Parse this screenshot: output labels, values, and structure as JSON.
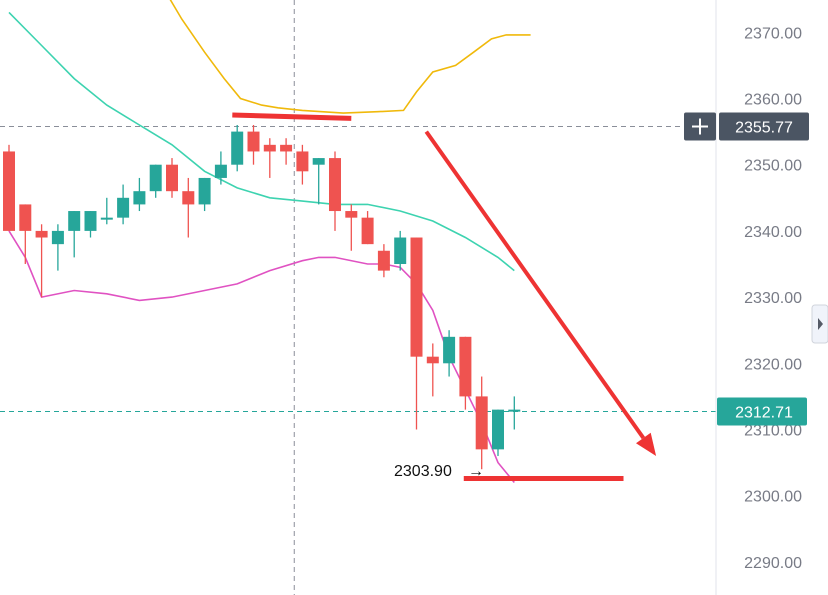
{
  "chart_data": {
    "type": "candlestick",
    "price_axis": {
      "position": "right",
      "ticks": [
        "2370.00",
        "2360.00",
        "2350.00",
        "2340.00",
        "2330.00",
        "2320.00",
        "2310.00",
        "2300.00",
        "2290.00"
      ],
      "tick_values": [
        2370,
        2360,
        2350,
        2340,
        2330,
        2320,
        2310,
        2300,
        2290
      ]
    },
    "crosshair": {
      "price_label": "2355.77",
      "price": 2355.77,
      "color": "#4b5563"
    },
    "last_price": {
      "label": "2312.71",
      "price": 2312.71,
      "color": "#26a69a"
    },
    "low_annotation": {
      "label": "2303.90",
      "arrow": "→",
      "price": 2303.9
    },
    "colors": {
      "up": "#26a69a",
      "down": "#ef5350",
      "upper_band": "#f0b90b",
      "middle_band": "#3dd3b0",
      "lower_band": "#e052c2",
      "drawing": "#ee3333"
    },
    "candles": [
      {
        "o": 2352,
        "h": 2353,
        "l": 2340,
        "c": 2340
      },
      {
        "o": 2344,
        "h": 2344,
        "l": 2335,
        "c": 2340
      },
      {
        "o": 2340,
        "h": 2341,
        "l": 2330,
        "c": 2339
      },
      {
        "o": 2338,
        "h": 2341,
        "l": 2334,
        "c": 2340
      },
      {
        "o": 2340,
        "h": 2343,
        "l": 2336,
        "c": 2343
      },
      {
        "o": 2340,
        "h": 2343,
        "l": 2339,
        "c": 2343
      },
      {
        "o": 2342,
        "h": 2345,
        "l": 2341,
        "c": 2342
      },
      {
        "o": 2342,
        "h": 2347,
        "l": 2341,
        "c": 2345
      },
      {
        "o": 2344,
        "h": 2348,
        "l": 2343,
        "c": 2346
      },
      {
        "o": 2346,
        "h": 2350,
        "l": 2345,
        "c": 2350
      },
      {
        "o": 2350,
        "h": 2351,
        "l": 2345,
        "c": 2346
      },
      {
        "o": 2346,
        "h": 2348,
        "l": 2339,
        "c": 2344
      },
      {
        "o": 2344,
        "h": 2348,
        "l": 2343,
        "c": 2348
      },
      {
        "o": 2348,
        "h": 2352,
        "l": 2347,
        "c": 2350
      },
      {
        "o": 2350,
        "h": 2356,
        "l": 2349,
        "c": 2355
      },
      {
        "o": 2355,
        "h": 2356,
        "l": 2350,
        "c": 2352
      },
      {
        "o": 2353,
        "h": 2354,
        "l": 2348,
        "c": 2352
      },
      {
        "o": 2353,
        "h": 2354,
        "l": 2350,
        "c": 2352
      },
      {
        "o": 2352,
        "h": 2353,
        "l": 2347,
        "c": 2349
      },
      {
        "o": 2350,
        "h": 2351,
        "l": 2344,
        "c": 2351
      },
      {
        "o": 2351,
        "h": 2352,
        "l": 2340,
        "c": 2343
      },
      {
        "o": 2343,
        "h": 2344,
        "l": 2337,
        "c": 2342
      },
      {
        "o": 2342,
        "h": 2343,
        "l": 2338,
        "c": 2338
      },
      {
        "o": 2337,
        "h": 2338,
        "l": 2333,
        "c": 2334
      },
      {
        "o": 2335,
        "h": 2340,
        "l": 2334,
        "c": 2339
      },
      {
        "o": 2339,
        "h": 2339,
        "l": 2310,
        "c": 2321
      },
      {
        "o": 2321,
        "h": 2323,
        "l": 2315,
        "c": 2320
      },
      {
        "o": 2320,
        "h": 2325,
        "l": 2318,
        "c": 2324
      },
      {
        "o": 2324,
        "h": 2324,
        "l": 2313,
        "c": 2315
      },
      {
        "o": 2315,
        "h": 2318,
        "l": 2304,
        "c": 2307
      },
      {
        "o": 2307,
        "h": 2313,
        "l": 2306,
        "c": 2313
      },
      {
        "o": 2313,
        "h": 2315,
        "l": 2310,
        "c": 2313
      }
    ],
    "upper_band": [
      [
        9.4,
        2377
      ],
      [
        10.6,
        2372
      ],
      [
        12,
        2367
      ],
      [
        13.2,
        2363
      ],
      [
        14.2,
        2360
      ],
      [
        15.5,
        2359
      ],
      [
        16.5,
        2358.6
      ],
      [
        18,
        2358.2
      ],
      [
        20.5,
        2357.8
      ],
      [
        22.6,
        2358
      ],
      [
        24.2,
        2358.2
      ],
      [
        25,
        2361
      ],
      [
        26,
        2364
      ],
      [
        27.4,
        2365
      ],
      [
        28.5,
        2367
      ],
      [
        29.6,
        2369
      ],
      [
        30.5,
        2369.6
      ],
      [
        32,
        2369.6
      ]
    ],
    "middle_band": [
      [
        0,
        2373
      ],
      [
        2,
        2368
      ],
      [
        4,
        2363
      ],
      [
        6,
        2359
      ],
      [
        8,
        2356
      ],
      [
        10,
        2353
      ],
      [
        12,
        2349
      ],
      [
        14,
        2346.5
      ],
      [
        16,
        2345
      ],
      [
        18,
        2344.5
      ],
      [
        20,
        2344
      ],
      [
        22,
        2344
      ],
      [
        24,
        2343
      ],
      [
        26,
        2341.5
      ],
      [
        28,
        2339
      ],
      [
        30,
        2336
      ],
      [
        31,
        2334
      ]
    ],
    "lower_band": [
      [
        0,
        2340
      ],
      [
        1,
        2336
      ],
      [
        2,
        2330
      ],
      [
        4,
        2331
      ],
      [
        6,
        2330.5
      ],
      [
        8,
        2329.5
      ],
      [
        10,
        2330
      ],
      [
        12,
        2331
      ],
      [
        14,
        2332
      ],
      [
        16,
        2334
      ],
      [
        18,
        2335.5
      ],
      [
        19,
        2336
      ],
      [
        20,
        2336
      ],
      [
        22,
        2335
      ],
      [
        23,
        2335
      ],
      [
        24,
        2334.5
      ],
      [
        25,
        2332
      ],
      [
        26,
        2328
      ],
      [
        27,
        2321
      ],
      [
        28,
        2316
      ],
      [
        29,
        2311
      ],
      [
        30,
        2305
      ],
      [
        31,
        2302
      ]
    ],
    "drawings": [
      {
        "kind": "line",
        "from": [
          13.7,
          2357.5
        ],
        "to": [
          21,
          2357
        ]
      },
      {
        "kind": "arrow",
        "from": [
          25.6,
          2355
        ],
        "to": [
          39.7,
          2306
        ]
      },
      {
        "kind": "line",
        "from": [
          27.9,
          2302.6
        ],
        "to": [
          37.7,
          2302.6
        ]
      }
    ],
    "crosshair_index": 17.5
  }
}
